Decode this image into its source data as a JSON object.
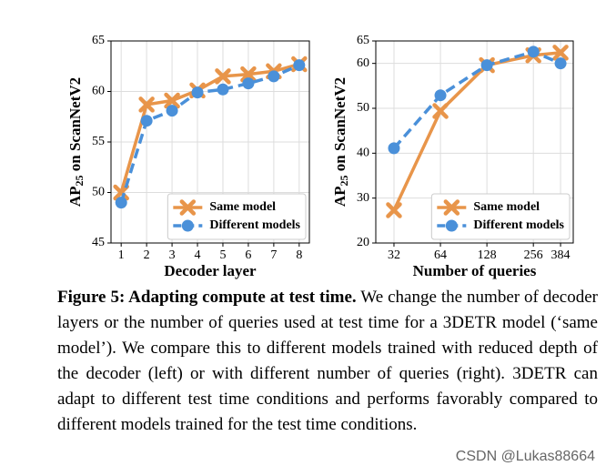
{
  "chart_data": [
    {
      "type": "line",
      "xlabel": "Decoder layer",
      "ylabel": [
        "AP",
        "25",
        " on ScanNetV2"
      ],
      "x": [
        1,
        2,
        3,
        4,
        5,
        6,
        7,
        8
      ],
      "series": [
        {
          "name": "Same model",
          "color": "#e8954a",
          "marker": "x",
          "dash": false,
          "values": [
            50.0,
            58.7,
            59.1,
            60.1,
            61.5,
            61.7,
            62.0,
            62.7
          ]
        },
        {
          "name": "Different models",
          "color": "#4a90d9",
          "marker": "o",
          "dash": true,
          "values": [
            49.0,
            57.1,
            58.1,
            59.9,
            60.2,
            60.8,
            61.5,
            62.6
          ]
        }
      ],
      "xlim": [
        0.6,
        8.4
      ],
      "xticks": [
        1,
        2,
        3,
        4,
        5,
        6,
        7,
        8
      ],
      "ylim": [
        45,
        65
      ],
      "yticks": [
        45,
        50,
        55,
        60,
        65
      ],
      "grid": true,
      "legend": "lower right"
    },
    {
      "type": "line",
      "xlabel": "Number of queries",
      "ylabel": [
        "AP",
        "25",
        " on ScanNetV2"
      ],
      "x": [
        32,
        64,
        128,
        256,
        384
      ],
      "xscale": "log",
      "series": [
        {
          "name": "Same model",
          "color": "#e8954a",
          "marker": "x",
          "dash": false,
          "values": [
            27.3,
            49.4,
            59.6,
            61.8,
            62.4
          ]
        },
        {
          "name": "Different models",
          "color": "#4a90d9",
          "marker": "o",
          "dash": true,
          "values": [
            41.1,
            52.9,
            59.6,
            62.6,
            60.0
          ]
        }
      ],
      "xlim": [
        24.4,
        464
      ],
      "xticks": [
        32,
        64,
        128,
        256,
        384
      ],
      "ylim": [
        20,
        65
      ],
      "yticks": [
        20,
        30,
        40,
        50,
        60,
        65
      ],
      "grid": true,
      "legend": "lower right"
    }
  ],
  "caption": {
    "label": "Figure 5: Adapting compute at test time.",
    "text": "We change the number of decoder layers or the number of queries used at test time for a 3DETR model (‘same model’).  We compare this to different models trained with reduced depth of the decoder (left) or with different number of queries (right). 3DETR can adapt to different test time conditions and performs favorably compared to different models trained for the test time conditions."
  },
  "watermark": "CSDN @Lukas88664"
}
